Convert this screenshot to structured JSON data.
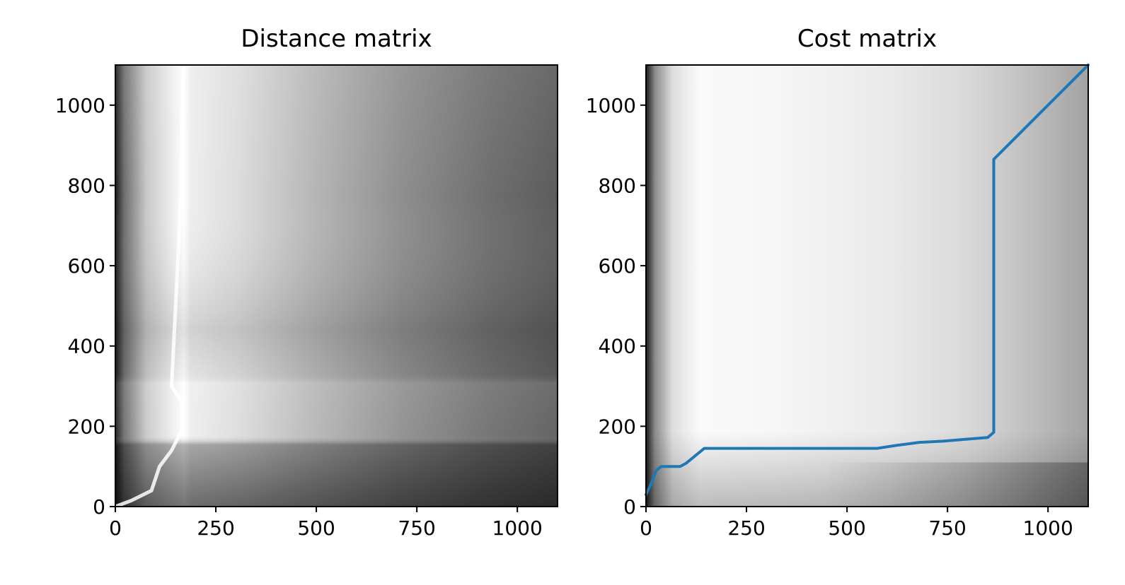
{
  "chart_data": [
    {
      "type": "heatmap",
      "title": "Distance matrix",
      "xlabel": "",
      "ylabel": "",
      "xlim": [
        0,
        1100
      ],
      "ylim": [
        0,
        1100
      ],
      "xticks": [
        0,
        250,
        500,
        750,
        1000
      ],
      "yticks": [
        0,
        200,
        400,
        600,
        800,
        1000
      ],
      "colormap": "gray",
      "grid": false
    },
    {
      "type": "heatmap",
      "title": "Cost matrix",
      "xlabel": "",
      "ylabel": "",
      "xlim": [
        0,
        1100
      ],
      "ylim": [
        0,
        1100
      ],
      "xticks": [
        0,
        250,
        500,
        750,
        1000
      ],
      "yticks": [
        0,
        200,
        400,
        600,
        800,
        1000
      ],
      "colormap": "gray",
      "grid": false,
      "series": [
        {
          "type": "line",
          "color": "#1f77b4",
          "x": [
            0,
            12,
            25,
            38,
            60,
            85,
            100,
            145,
            400,
            575,
            620,
            680,
            740,
            800,
            850,
            865,
            865,
            1100
          ],
          "y": [
            30,
            55,
            90,
            100,
            100,
            100,
            108,
            145,
            145,
            145,
            152,
            160,
            163,
            168,
            172,
            185,
            865,
            1100
          ]
        }
      ]
    }
  ]
}
